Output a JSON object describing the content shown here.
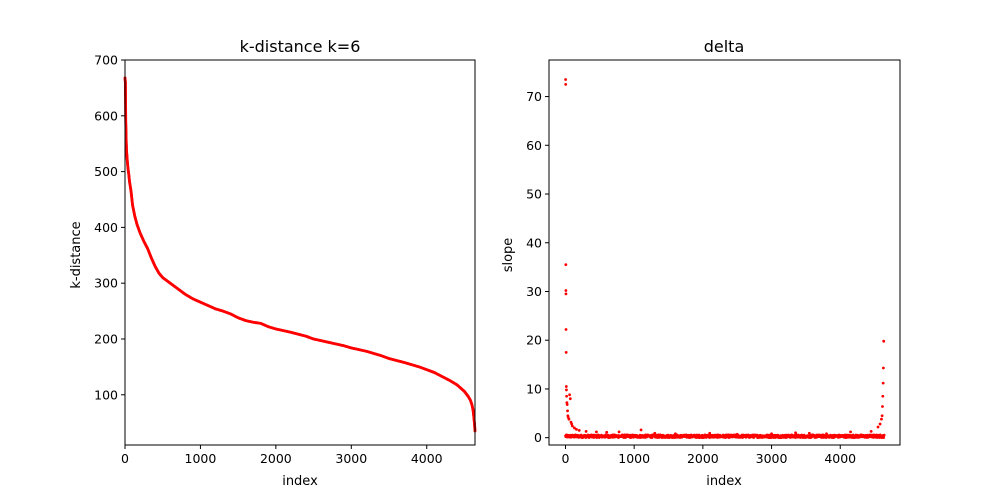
{
  "chart_data": [
    {
      "type": "scatter",
      "title": "k-distance k=6",
      "xlabel": "index",
      "ylabel": "k-distance",
      "xlim": [
        0,
        4640
      ],
      "ylim": [
        10,
        700
      ],
      "xticks": [
        0,
        1000,
        2000,
        3000,
        4000
      ],
      "yticks": [
        100,
        200,
        300,
        400,
        500,
        600,
        700
      ],
      "grid": false,
      "color": "#ff0000",
      "series": [
        {
          "curve": [
            [
              0,
              668
            ],
            [
              5,
              660
            ],
            [
              10,
              590
            ],
            [
              15,
              560
            ],
            [
              20,
              540
            ],
            [
              30,
              520
            ],
            [
              40,
              505
            ],
            [
              50,
              495
            ],
            [
              60,
              482
            ],
            [
              80,
              465
            ],
            [
              100,
              440
            ],
            [
              130,
              420
            ],
            [
              160,
              405
            ],
            [
              200,
              390
            ],
            [
              250,
              375
            ],
            [
              300,
              362
            ],
            [
              350,
              345
            ],
            [
              400,
              330
            ],
            [
              450,
              318
            ],
            [
              500,
              310
            ],
            [
              600,
              300
            ],
            [
              700,
              290
            ],
            [
              800,
              280
            ],
            [
              900,
              272
            ],
            [
              1000,
              266
            ],
            [
              1100,
              260
            ],
            [
              1200,
              254
            ],
            [
              1300,
              250
            ],
            [
              1400,
              245
            ],
            [
              1500,
              238
            ],
            [
              1600,
              233
            ],
            [
              1700,
              230
            ],
            [
              1800,
              228
            ],
            [
              1900,
              222
            ],
            [
              2000,
              218
            ],
            [
              2200,
              212
            ],
            [
              2400,
              205
            ],
            [
              2500,
              200
            ],
            [
              2700,
              194
            ],
            [
              2900,
              188
            ],
            [
              3000,
              184
            ],
            [
              3200,
              178
            ],
            [
              3400,
              170
            ],
            [
              3500,
              165
            ],
            [
              3700,
              158
            ],
            [
              3900,
              150
            ],
            [
              4000,
              145
            ],
            [
              4100,
              140
            ],
            [
              4200,
              133
            ],
            [
              4300,
              126
            ],
            [
              4400,
              118
            ],
            [
              4450,
              112
            ],
            [
              4500,
              106
            ],
            [
              4550,
              97
            ],
            [
              4580,
              90
            ],
            [
              4600,
              82
            ],
            [
              4615,
              72
            ],
            [
              4625,
              60
            ],
            [
              4635,
              45
            ],
            [
              4640,
              35
            ]
          ]
        }
      ]
    },
    {
      "type": "scatter",
      "title": "delta",
      "xlabel": "index",
      "ylabel": "slope",
      "xlim": [
        -240,
        4870
      ],
      "ylim": [
        -1.5,
        77.5
      ],
      "xticks": [
        0,
        1000,
        2000,
        3000,
        4000
      ],
      "yticks": [
        0,
        10,
        20,
        30,
        40,
        50,
        60,
        70
      ],
      "grid": false,
      "color": "#ff0000",
      "series": [
        {
          "outliers": [
            [
              2,
              73.5
            ],
            [
              3,
              72.5
            ],
            [
              5,
              35.5
            ],
            [
              6,
              30.2
            ],
            [
              7,
              29.5
            ],
            [
              8,
              22.2
            ],
            [
              10,
              17.5
            ],
            [
              12,
              10.5
            ],
            [
              14,
              9.8
            ],
            [
              16,
              8.5
            ],
            [
              20,
              7.2
            ],
            [
              25,
              6.8
            ],
            [
              30,
              5.5
            ],
            [
              35,
              4.5
            ],
            [
              40,
              4.2
            ],
            [
              50,
              3.8
            ],
            [
              60,
              8.8
            ],
            [
              70,
              8.0
            ],
            [
              80,
              3.2
            ],
            [
              90,
              2.8
            ],
            [
              100,
              2.4
            ],
            [
              130,
              2.0
            ],
            [
              160,
              1.7
            ],
            [
              200,
              1.5
            ],
            [
              300,
              1.3
            ],
            [
              450,
              1.2
            ],
            [
              600,
              1.1
            ],
            [
              780,
              1.2
            ],
            [
              1100,
              1.6
            ],
            [
              1300,
              0.9
            ],
            [
              1600,
              0.8
            ],
            [
              2100,
              0.9
            ],
            [
              2500,
              0.7
            ],
            [
              3000,
              0.8
            ],
            [
              3350,
              1.0
            ],
            [
              3550,
              0.9
            ],
            [
              3800,
              0.8
            ],
            [
              4150,
              1.2
            ],
            [
              4450,
              1.3
            ],
            [
              4550,
              2.2
            ],
            [
              4580,
              2.8
            ],
            [
              4600,
              3.8
            ],
            [
              4610,
              4.5
            ],
            [
              4615,
              6.4
            ],
            [
              4620,
              8.5
            ],
            [
              4625,
              11.2
            ],
            [
              4628,
              14.3
            ],
            [
              4633,
              19.8
            ]
          ],
          "baseline": {
            "x_start": 0,
            "x_end": 4640,
            "min": 0,
            "max": 0.6
          }
        }
      ]
    }
  ]
}
